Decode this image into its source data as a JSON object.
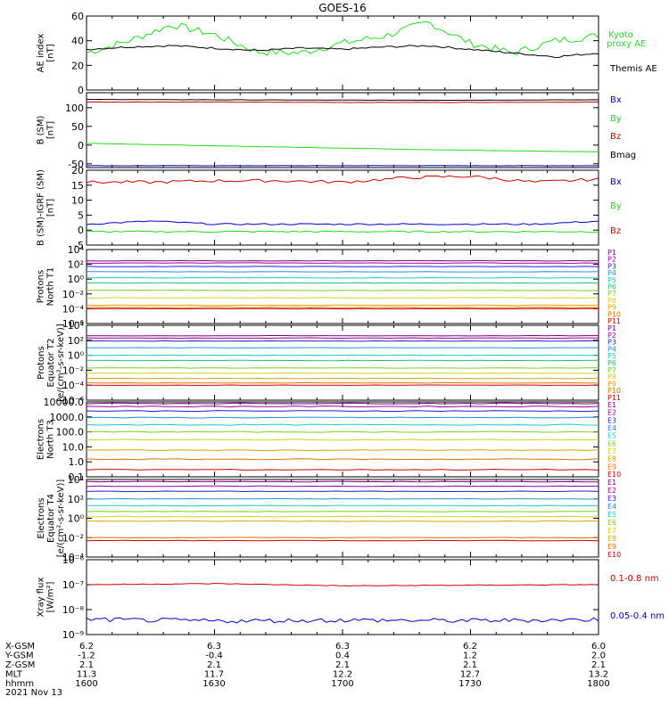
{
  "title": "GOES-16",
  "colors": {
    "kyoto": "#22dd22",
    "themis": "#000000",
    "bx": "#0000cc",
    "by": "#22dd22",
    "bz": "#cc0000",
    "bmag": "#000000",
    "xray_long": "#cc0000",
    "xray_short": "#0000cc",
    "channels": [
      "#7a007a",
      "#9a009a",
      "#2020cc",
      "#2090e0",
      "#20c8c8",
      "#20c070",
      "#80cc20",
      "#d0d020",
      "#e0a000",
      "#e07000",
      "#cc0000"
    ]
  },
  "panels": [
    {
      "id": "ae",
      "ylabel": [
        "AE index",
        "[nT]"
      ],
      "legend": [
        {
          "text": "Kyoto",
          "color": "#22dd22"
        },
        {
          "text": "proxy AE",
          "color": "#22dd22"
        },
        {
          "text": "",
          "color": "#000"
        },
        {
          "text": "Themis AE",
          "color": "#000000"
        }
      ]
    },
    {
      "id": "bsm",
      "ylabel": [
        "B (SM)",
        "[nT]"
      ],
      "legend": [
        {
          "text": "Bx",
          "color": "#0000cc"
        },
        {
          "text": "By",
          "color": "#22dd22"
        },
        {
          "text": "Bz",
          "color": "#cc0000"
        },
        {
          "text": "Bmag",
          "color": "#000000"
        }
      ]
    },
    {
      "id": "bdiff",
      "ylabel": [
        "B (SM)-IGRF (SM)",
        "[nT]"
      ],
      "legend": [
        {
          "text": "Bx",
          "color": "#0000cc"
        },
        {
          "text": "By",
          "color": "#22dd22"
        },
        {
          "text": "Bz",
          "color": "#cc0000"
        }
      ]
    },
    {
      "id": "p_north",
      "ylabel": [
        "Protons",
        "North T1"
      ],
      "legend": [
        "P1",
        "P2",
        "P3",
        "P4",
        "P5",
        "P6",
        "P7",
        "P8",
        "P9",
        "P10",
        "P11"
      ]
    },
    {
      "id": "p_equator",
      "ylabel": [
        "Protons",
        "Equator T2",
        "[e/(cm²-s-sr-keV)]"
      ],
      "legend": [
        "P1",
        "P2",
        "P3",
        "P4",
        "P5",
        "P6",
        "P7",
        "P8",
        "P9",
        "P10",
        "P11"
      ]
    },
    {
      "id": "e_north",
      "ylabel": [
        "Electrons",
        "North T3"
      ],
      "legend": [
        "E1",
        "E2",
        "E3",
        "E4",
        "E5",
        "E6",
        "E7",
        "E8",
        "E9",
        "E10"
      ]
    },
    {
      "id": "e_equator",
      "ylabel": [
        "Electrons",
        "Equator T4",
        "[e/(cm²-s-sr-keV)]"
      ],
      "legend": [
        "E1",
        "E2",
        "E3",
        "E4",
        "E5",
        "E6",
        "E7",
        "E8",
        "E9",
        "E10"
      ]
    },
    {
      "id": "xray",
      "ylabel": [
        "Xray flux",
        "[W/m²]"
      ],
      "legend": [
        {
          "text": "0.1-0.8 nm",
          "color": "#cc0000"
        },
        {
          "text": "0.05-0.4 nm",
          "color": "#0000cc"
        }
      ]
    }
  ],
  "footer": {
    "rows": [
      {
        "label": "X-GSM",
        "values": [
          "6.2",
          "6.3",
          "6.3",
          "6.2",
          "6.0"
        ]
      },
      {
        "label": "Y-GSM",
        "values": [
          "-1.2",
          "-0.4",
          "0.4",
          "1.2",
          "2.0"
        ]
      },
      {
        "label": "Z-GSM",
        "values": [
          "2.1",
          "2.1",
          "2.1",
          "2.1",
          "2.1"
        ]
      },
      {
        "label": "MLT",
        "values": [
          "11.3",
          "11.7",
          "12.2",
          "12.7",
          "13.2"
        ]
      },
      {
        "label": "hhmm",
        "values": [
          "1600",
          "1630",
          "1700",
          "1730",
          "1800"
        ]
      }
    ],
    "date": "2021 Nov 13"
  },
  "chart_data": [
    {
      "type": "line",
      "title": "GOES-16",
      "ylabel": "AE index [nT]",
      "ylim": [
        0,
        60
      ],
      "yticks": [
        "0",
        "20",
        "40",
        "60"
      ],
      "x": [
        "1600",
        "1610",
        "1620",
        "1630",
        "1640",
        "1650",
        "1700",
        "1710",
        "1720",
        "1730",
        "1740",
        "1750",
        "1800"
      ],
      "series": [
        {
          "name": "Kyoto proxy AE",
          "values": [
            30,
            40,
            53,
            45,
            31,
            30,
            38,
            44,
            55,
            38,
            30,
            40,
            44
          ]
        },
        {
          "name": "Themis AE",
          "values": [
            33,
            35,
            36,
            34,
            32,
            34,
            33,
            35,
            36,
            33,
            30,
            27,
            30
          ]
        }
      ]
    },
    {
      "type": "line",
      "ylabel": "B (SM) [nT]",
      "ylim": [
        -60,
        140
      ],
      "yticks": [
        "-50",
        "0",
        "50",
        "100"
      ],
      "x": [
        "1600",
        "1630",
        "1700",
        "1730",
        "1800"
      ],
      "series": [
        {
          "name": "Bx",
          "values": [
            -55,
            -55,
            -55,
            -55,
            -55
          ]
        },
        {
          "name": "By",
          "values": [
            5,
            -2,
            -8,
            -14,
            -18
          ]
        },
        {
          "name": "Bz",
          "values": [
            115,
            115,
            114,
            114,
            115
          ]
        },
        {
          "name": "Bmag",
          "values": [
            122,
            121,
            120,
            120,
            121
          ]
        }
      ]
    },
    {
      "type": "line",
      "ylabel": "B (SM)-IGRF (SM) [nT]",
      "ylim": [
        -5,
        20
      ],
      "yticks": [
        "-5",
        "0",
        "5",
        "10",
        "15",
        "20"
      ],
      "x": [
        "1600",
        "1615",
        "1630",
        "1645",
        "1700",
        "1715",
        "1730",
        "1745",
        "1800"
      ],
      "series": [
        {
          "name": "Bx",
          "values": [
            2,
            3,
            2,
            2,
            2,
            2,
            2,
            2,
            3
          ]
        },
        {
          "name": "By",
          "values": [
            -0.5,
            -0.5,
            -0.5,
            -0.5,
            -0.5,
            -0.5,
            -0.5,
            -0.5,
            -0.5
          ]
        },
        {
          "name": "Bz",
          "values": [
            16,
            16,
            16.5,
            16.5,
            16,
            17.5,
            18,
            16,
            17
          ]
        }
      ]
    },
    {
      "type": "line",
      "ylabel": "Protons North T1",
      "yscale": "log",
      "ylim": [
        1e-06,
        10000.0
      ],
      "yticks": [
        "10⁴",
        "10²",
        "10⁰",
        "10⁻²",
        "10⁻⁴",
        "10⁻⁶"
      ],
      "series_names": [
        "P1",
        "P2",
        "P3",
        "P4",
        "P5",
        "P6",
        "P7",
        "P8",
        "P9",
        "P10",
        "P11"
      ],
      "levels": [
        300,
        150,
        50,
        10,
        1.5,
        0.3,
        0.03,
        0.003,
        0.0003,
        0.00015,
        0.0001
      ]
    },
    {
      "type": "line",
      "ylabel": "Protons Equator T2 [e/(cm²-s-sr-keV)]",
      "yscale": "log",
      "ylim": [
        1e-06,
        10000.0
      ],
      "yticks": [
        "10⁴",
        "10²",
        "10⁰",
        "10⁻²",
        "10⁻⁴",
        "10⁻⁶"
      ],
      "series_names": [
        "P1",
        "P2",
        "P3",
        "P4",
        "P5",
        "P6",
        "P7",
        "P8",
        "P9",
        "P10",
        "P11"
      ],
      "levels": [
        400,
        200,
        80,
        10,
        1,
        0.2,
        0.02,
        0.004,
        0.0008,
        0.0002,
        0.0001
      ]
    },
    {
      "type": "line",
      "ylabel": "Electrons North T3",
      "yscale": "log",
      "ylim": [
        0.1,
        10000
      ],
      "yticks": [
        "10000.0",
        "1000.0",
        "100.0",
        "10.0",
        "1.0",
        "0.1"
      ],
      "series_names": [
        "E1",
        "E2",
        "E3",
        "E4",
        "E5",
        "E6",
        "E7",
        "E8",
        "E9",
        "E10"
      ],
      "levels": [
        8000,
        5000,
        2500,
        900,
        300,
        100,
        30,
        6,
        1.5,
        0.3
      ]
    },
    {
      "type": "line",
      "ylabel": "Electrons Equator T4 [e/(cm²-s-sr-keV)]",
      "yscale": "log",
      "ylim": [
        0.0001,
        10000
      ],
      "yticks": [
        "10⁴",
        "10²",
        "10⁰",
        "10⁻²",
        "10⁻⁴"
      ],
      "series_names": [
        "E1",
        "E2",
        "E3",
        "E4",
        "E5",
        "E6",
        "E7",
        "E8",
        "E9",
        "E10"
      ],
      "levels": [
        6000,
        2000,
        600,
        100,
        20,
        5,
        1.5,
        0.5,
        0.01,
        0.005
      ]
    },
    {
      "type": "line",
      "ylabel": "Xray flux [W/m²]",
      "yscale": "log",
      "ylim": [
        1e-09,
        1e-06
      ],
      "yticks": [
        "10⁻⁶",
        "10⁻⁷",
        "10⁻⁸",
        "10⁻⁹"
      ],
      "x": [
        "1600",
        "1630",
        "1700",
        "1730",
        "1800"
      ],
      "series": [
        {
          "name": "0.1-0.8 nm",
          "values": [
            1e-07,
            1.1e-07,
            9e-08,
            9.5e-08,
            1e-07
          ]
        },
        {
          "name": "0.05-0.4 nm",
          "values": [
            4e-09,
            3.5e-09,
            3.8e-09,
            3.6e-09,
            4e-09
          ]
        }
      ]
    }
  ]
}
